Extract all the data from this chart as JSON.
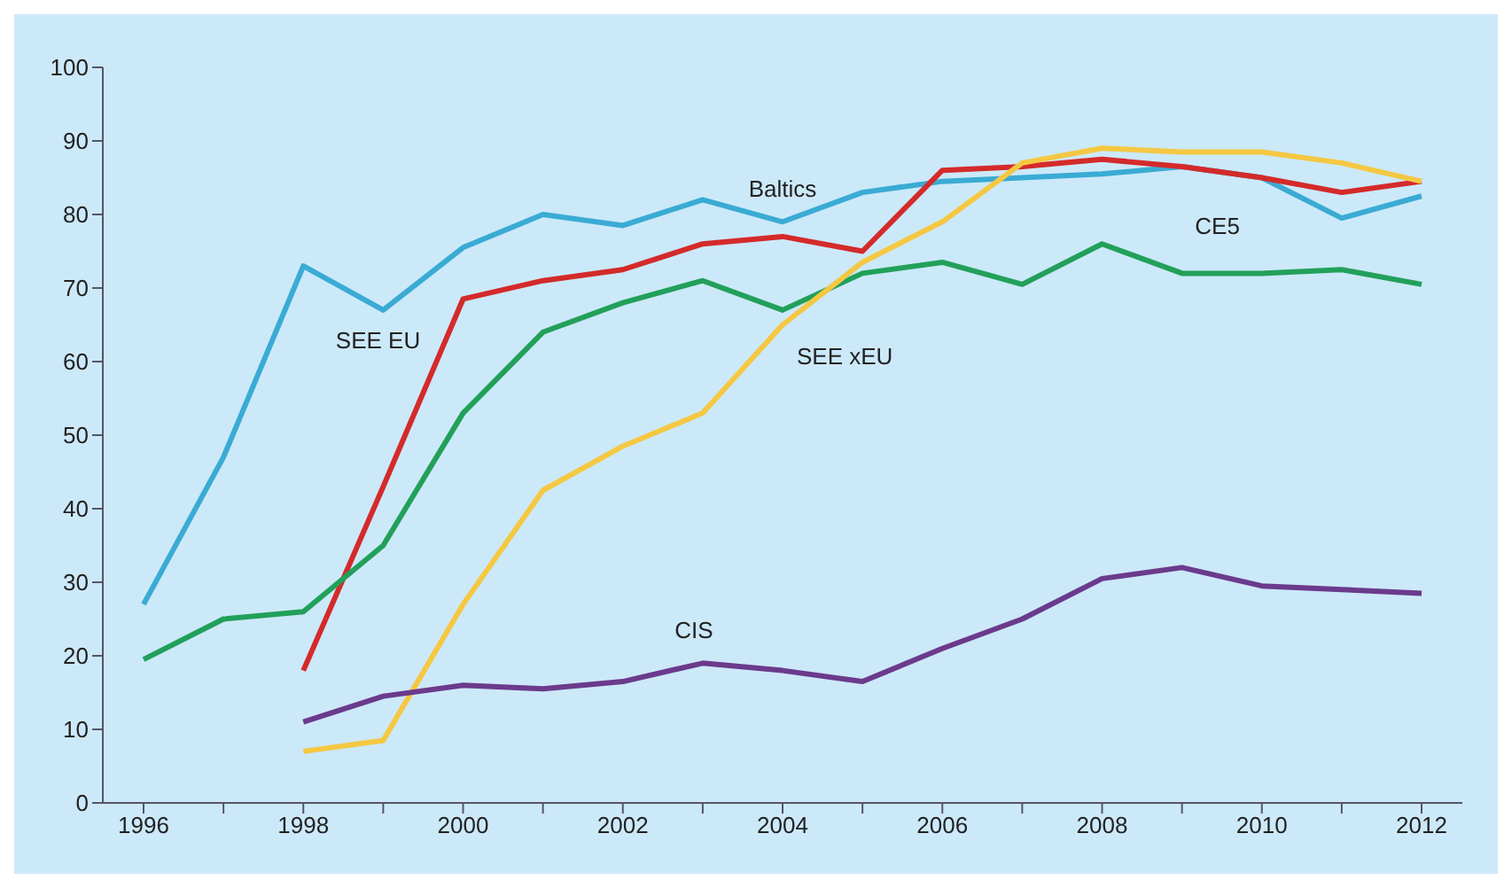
{
  "chart_data": {
    "type": "line",
    "categories": [
      "1996",
      null,
      "1998",
      null,
      "2000",
      null,
      "2002",
      null,
      "2004",
      null,
      "2006",
      null,
      "2008",
      null,
      "2010",
      null,
      "2012"
    ],
    "series": [
      {
        "name": "Baltics",
        "color": "#3aabd4",
        "values": [
          27,
          47,
          73,
          67,
          75.5,
          80,
          78.5,
          82,
          79,
          83,
          84.5,
          85,
          85.5,
          86.5,
          85,
          79.5,
          82.5
        ]
      },
      {
        "name": "SEE EU",
        "color": "#d42a2a",
        "values": [
          null,
          null,
          18,
          43,
          68.5,
          71,
          72.5,
          76,
          77,
          75,
          86,
          86.5,
          87.5,
          86.5,
          85,
          83,
          84.5
        ]
      },
      {
        "name": "CE5",
        "color": "#22a05a",
        "values": [
          19.5,
          25,
          26,
          35,
          53,
          64,
          68,
          71,
          67,
          72,
          73.5,
          70.5,
          76,
          72,
          72,
          72.5,
          70.5
        ]
      },
      {
        "name": "SEE xEU",
        "color": "#f5c842",
        "values": [
          null,
          null,
          7,
          8.5,
          27,
          42.5,
          48.5,
          53,
          65,
          73.5,
          79,
          87,
          89,
          88.5,
          88.5,
          87,
          84.5
        ]
      },
      {
        "name": "CIS",
        "color": "#6b3a8c",
        "values": [
          null,
          null,
          11,
          14.5,
          16,
          15.5,
          16.5,
          19,
          18,
          16.5,
          21,
          25,
          30.5,
          32,
          29.5,
          29,
          28.5
        ]
      }
    ],
    "ylim": [
      0,
      100
    ],
    "yticks": [
      0,
      10,
      20,
      30,
      40,
      50,
      60,
      70,
      80,
      90,
      100
    ],
    "grid": false,
    "legend": false,
    "marker": "none",
    "line_style": "solid"
  }
}
